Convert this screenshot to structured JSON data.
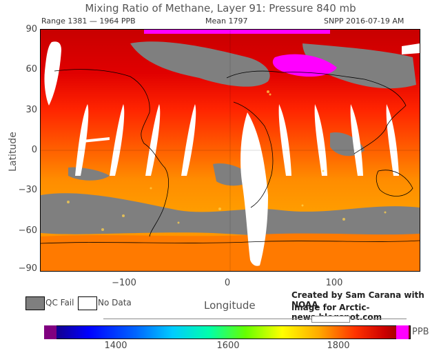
{
  "title": "Mixing Ratio of Methane, Layer 91: Pressure 840 mb",
  "subtitle": {
    "range": "Range 1381 — 1964 PPB",
    "mean": "Mean 1797",
    "source": "SNPP 2016-07-19 AM"
  },
  "axes": {
    "ylabel": "Latitude",
    "xlabel": "Longitude",
    "lat_ticks": [
      "90",
      "60",
      "30",
      "0",
      "−30",
      "−60",
      "−90"
    ],
    "lon_ticks": [
      "−100",
      "0",
      "100"
    ]
  },
  "legend": {
    "qc_fail": "QC Fail",
    "no_data": "No Data",
    "qc_fail_color": "#7f7f7f",
    "no_data_color": "#ffffff"
  },
  "credit": {
    "line1": "Created by Sam Carana with NOAA",
    "line2": "image for Arctic-news.blogspot.com"
  },
  "colorbar": {
    "unit": "PPB",
    "labels": [
      "1400",
      "1600",
      "1800"
    ],
    "low_color": "#800080",
    "high_color": "#ff00ff"
  }
}
